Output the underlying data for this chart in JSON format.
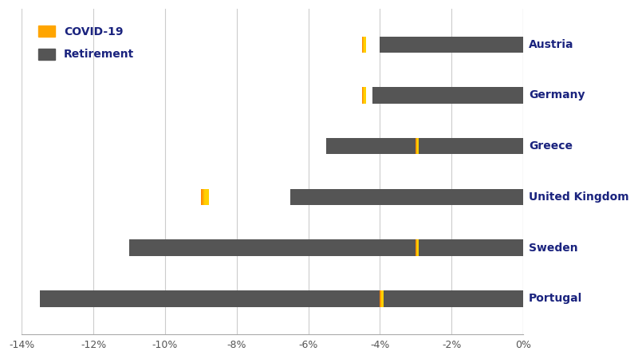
{
  "countries": [
    "Austria",
    "Germany",
    "Greece",
    "United Kingdom",
    "Sweden",
    "Portugal"
  ],
  "covid": [
    -4.5,
    -4.5,
    -3.0,
    -9.0,
    -3.0,
    -4.0
  ],
  "retirement": [
    -4.0,
    -4.2,
    -5.5,
    -6.5,
    -11.0,
    -13.5
  ],
  "covid_color_left": "#E07B00",
  "covid_color_right": "#FFD000",
  "retirement_color": "#555555",
  "xlim_min": -14,
  "xlim_max": 0,
  "xticks": [
    -14,
    -12,
    -10,
    -8,
    -6,
    -4,
    -2,
    0
  ],
  "xtick_labels": [
    "-14%",
    "-12%",
    "-10%",
    "-8%",
    "-6%",
    "-4%",
    "-2%",
    "0%"
  ],
  "legend_covid": "COVID-19",
  "legend_retirement": "Retirement",
  "bar_height": 0.32,
  "label_color": "#1a237e",
  "background_color": "#ffffff",
  "grid_color": "#cccccc",
  "n_gradient_slices": 80
}
